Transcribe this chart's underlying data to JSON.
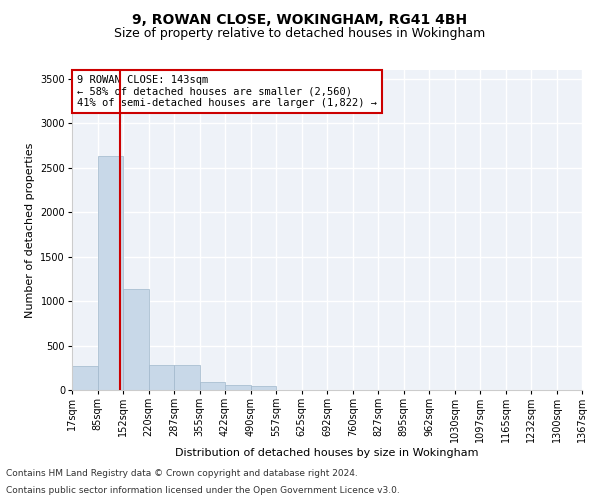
{
  "title1": "9, ROWAN CLOSE, WOKINGHAM, RG41 4BH",
  "title2": "Size of property relative to detached houses in Wokingham",
  "xlabel": "Distribution of detached houses by size in Wokingham",
  "ylabel": "Number of detached properties",
  "bar_color": "#c8d8e8",
  "bar_edge_color": "#a0b8cc",
  "vline_color": "#cc0000",
  "vline_x": 143,
  "annotation_line1": "9 ROWAN CLOSE: 143sqm",
  "annotation_line2": "← 58% of detached houses are smaller (2,560)",
  "annotation_line3": "41% of semi-detached houses are larger (1,822) →",
  "annotation_box_color": "#ffffff",
  "annotation_box_edge": "#cc0000",
  "footnote1": "Contains HM Land Registry data © Crown copyright and database right 2024.",
  "footnote2": "Contains public sector information licensed under the Open Government Licence v3.0.",
  "bin_edges": [
    17,
    85,
    152,
    220,
    287,
    355,
    422,
    490,
    557,
    625,
    692,
    760,
    827,
    895,
    962,
    1030,
    1097,
    1165,
    1232,
    1300,
    1367
  ],
  "bin_counts": [
    270,
    2630,
    1140,
    280,
    280,
    90,
    60,
    40,
    0,
    0,
    0,
    0,
    0,
    0,
    0,
    0,
    0,
    0,
    0,
    0
  ],
  "ylim": [
    0,
    3600
  ],
  "yticks": [
    0,
    500,
    1000,
    1500,
    2000,
    2500,
    3000,
    3500
  ],
  "background_color": "#eef2f8",
  "grid_color": "#ffffff",
  "fig_background": "#ffffff",
  "title_fontsize": 10,
  "subtitle_fontsize": 9,
  "tick_fontsize": 7,
  "ylabel_fontsize": 8,
  "xlabel_fontsize": 8,
  "annotation_fontsize": 7.5,
  "footnote_fontsize": 6.5
}
